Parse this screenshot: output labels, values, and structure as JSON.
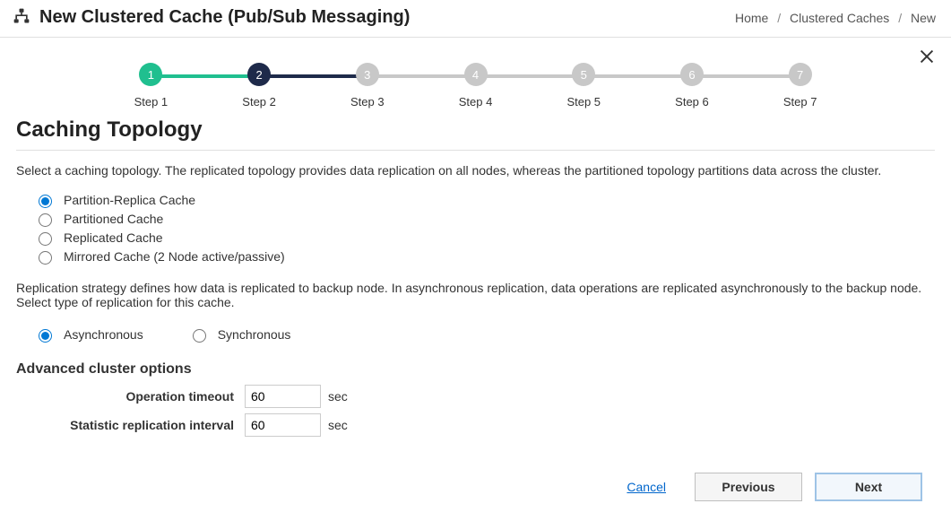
{
  "header": {
    "title": "New Clustered Cache (Pub/Sub Messaging)",
    "breadcrumb": {
      "home": "Home",
      "mid": "Clustered Caches",
      "last": "New"
    }
  },
  "stepper": {
    "steps": [
      {
        "num": "1",
        "label": "Step 1",
        "state": "done",
        "line": "done"
      },
      {
        "num": "2",
        "label": "Step 2",
        "state": "current",
        "line": "current"
      },
      {
        "num": "3",
        "label": "Step 3",
        "state": "pending",
        "line": "pending"
      },
      {
        "num": "4",
        "label": "Step 4",
        "state": "pending",
        "line": "pending"
      },
      {
        "num": "5",
        "label": "Step 5",
        "state": "pending",
        "line": "pending"
      },
      {
        "num": "6",
        "label": "Step 6",
        "state": "pending",
        "line": "pending"
      },
      {
        "num": "7",
        "label": "Step 7",
        "state": "pending",
        "line": "pending"
      }
    ]
  },
  "section": {
    "title": "Caching Topology",
    "topology_desc": "Select a caching topology. The replicated topology provides data replication on all nodes, whereas the partitioned topology partitions data across the cluster.",
    "topology_options": {
      "opt1": "Partition-Replica Cache",
      "opt2": "Partitioned Cache",
      "opt3": "Replicated Cache",
      "opt4": "Mirrored Cache (2 Node active/passive)"
    },
    "replication_desc": "Replication strategy defines how data is replicated to backup node. In asynchronous replication, data operations are replicated asynchronously to the backup node. Select type of replication for this cache.",
    "replication_options": {
      "async": "Asynchronous",
      "sync": "Synchronous"
    },
    "advanced_title": "Advanced cluster options",
    "op_timeout_label": "Operation timeout",
    "op_timeout_value": "60",
    "op_timeout_unit": "sec",
    "stat_interval_label": "Statistic replication interval",
    "stat_interval_value": "60",
    "stat_interval_unit": "sec"
  },
  "footer": {
    "cancel": "Cancel",
    "previous": "Previous",
    "next": "Next"
  },
  "colors": {
    "done": "#20bf8f",
    "current": "#1e2a4a",
    "pending": "#c8c8c8",
    "link": "#0066cc",
    "border": "#e0e0e0"
  }
}
